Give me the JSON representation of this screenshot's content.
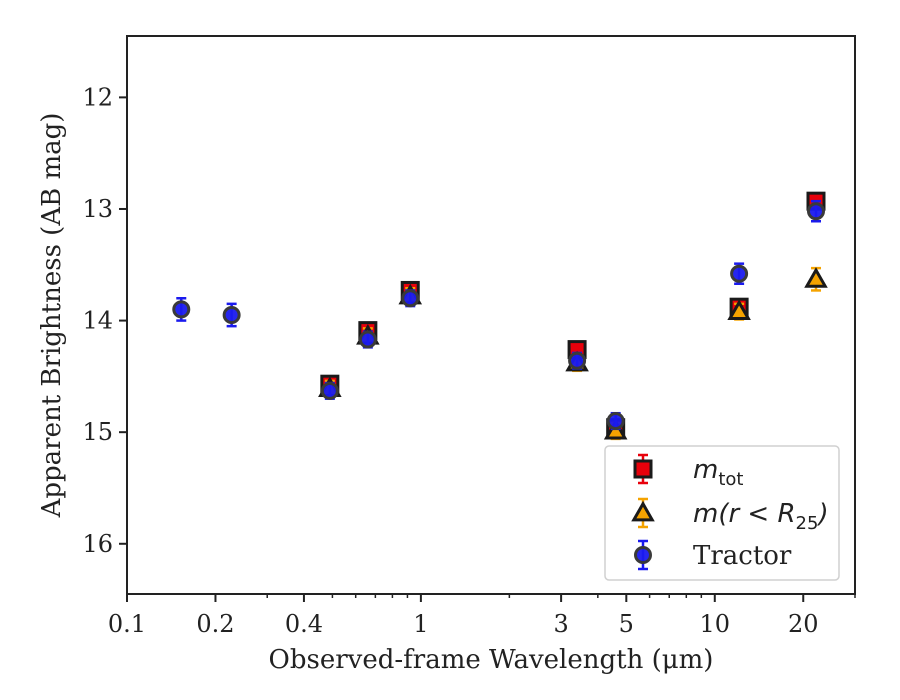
{
  "chart_data": {
    "type": "scatter",
    "xlabel": "Observed-frame Wavelength (μm)",
    "ylabel": "Apparent Brightness (AB mag)",
    "x_scale": "log",
    "xlim": [
      0.1,
      30
    ],
    "ylim": [
      16.45,
      11.45
    ],
    "y_inverted": true,
    "x_ticks": [
      {
        "value": 0.1,
        "label": "0.1"
      },
      {
        "value": 0.2,
        "label": "0.2"
      },
      {
        "value": 0.4,
        "label": "0.4"
      },
      {
        "value": 1,
        "label": "1"
      },
      {
        "value": 3,
        "label": "3"
      },
      {
        "value": 5,
        "label": "5"
      },
      {
        "value": 10,
        "label": "10"
      },
      {
        "value": 20,
        "label": "20"
      }
    ],
    "y_ticks": [
      {
        "value": 12,
        "label": "12"
      },
      {
        "value": 13,
        "label": "13"
      },
      {
        "value": 14,
        "label": "14"
      },
      {
        "value": 15,
        "label": "15"
      },
      {
        "value": 16,
        "label": "16"
      }
    ],
    "grid": false,
    "legend_position": "lower-right",
    "series": [
      {
        "name": "m_tot",
        "legend_label": "m_tot",
        "marker": "square",
        "color": "#e8000b",
        "edge_color": "#1a1a1a",
        "points": [
          {
            "x": 0.49,
            "y": 14.57,
            "err": 0.07
          },
          {
            "x": 0.66,
            "y": 14.09,
            "err": 0.07
          },
          {
            "x": 0.92,
            "y": 13.73,
            "err": 0.07
          },
          {
            "x": 3.4,
            "y": 14.26,
            "err": 0.07
          },
          {
            "x": 4.6,
            "y": 14.96,
            "err": 0.07
          },
          {
            "x": 12.1,
            "y": 13.88,
            "err": 0.07
          },
          {
            "x": 22.1,
            "y": 12.93,
            "err": 0.07
          }
        ]
      },
      {
        "name": "m(r < R25)",
        "legend_label": "m(r < R25)",
        "marker": "triangle",
        "color": "#f5a300",
        "edge_color": "#1a1a1a",
        "points": [
          {
            "x": 0.49,
            "y": 14.61,
            "err": 0.07
          },
          {
            "x": 0.66,
            "y": 14.14,
            "err": 0.07
          },
          {
            "x": 0.92,
            "y": 13.78,
            "err": 0.07
          },
          {
            "x": 3.4,
            "y": 14.38,
            "err": 0.07
          },
          {
            "x": 4.6,
            "y": 14.99,
            "err": 0.07
          },
          {
            "x": 12.1,
            "y": 13.92,
            "err": 0.07
          },
          {
            "x": 22.1,
            "y": 13.63,
            "err": 0.1
          }
        ]
      },
      {
        "name": "Tractor",
        "legend_label": "Tractor",
        "marker": "circle",
        "color": "#1a1aee",
        "edge_color": "#3a3a3a",
        "points": [
          {
            "x": 0.153,
            "y": 13.9,
            "err": 0.1
          },
          {
            "x": 0.227,
            "y": 13.95,
            "err": 0.1
          },
          {
            "x": 0.49,
            "y": 14.63,
            "err": 0.07
          },
          {
            "x": 0.66,
            "y": 14.17,
            "err": 0.07
          },
          {
            "x": 0.92,
            "y": 13.8,
            "err": 0.07
          },
          {
            "x": 3.4,
            "y": 14.36,
            "err": 0.07
          },
          {
            "x": 4.6,
            "y": 14.9,
            "err": 0.07
          },
          {
            "x": 12.1,
            "y": 13.58,
            "err": 0.09
          },
          {
            "x": 22.1,
            "y": 13.02,
            "err": 0.09
          }
        ]
      }
    ]
  }
}
